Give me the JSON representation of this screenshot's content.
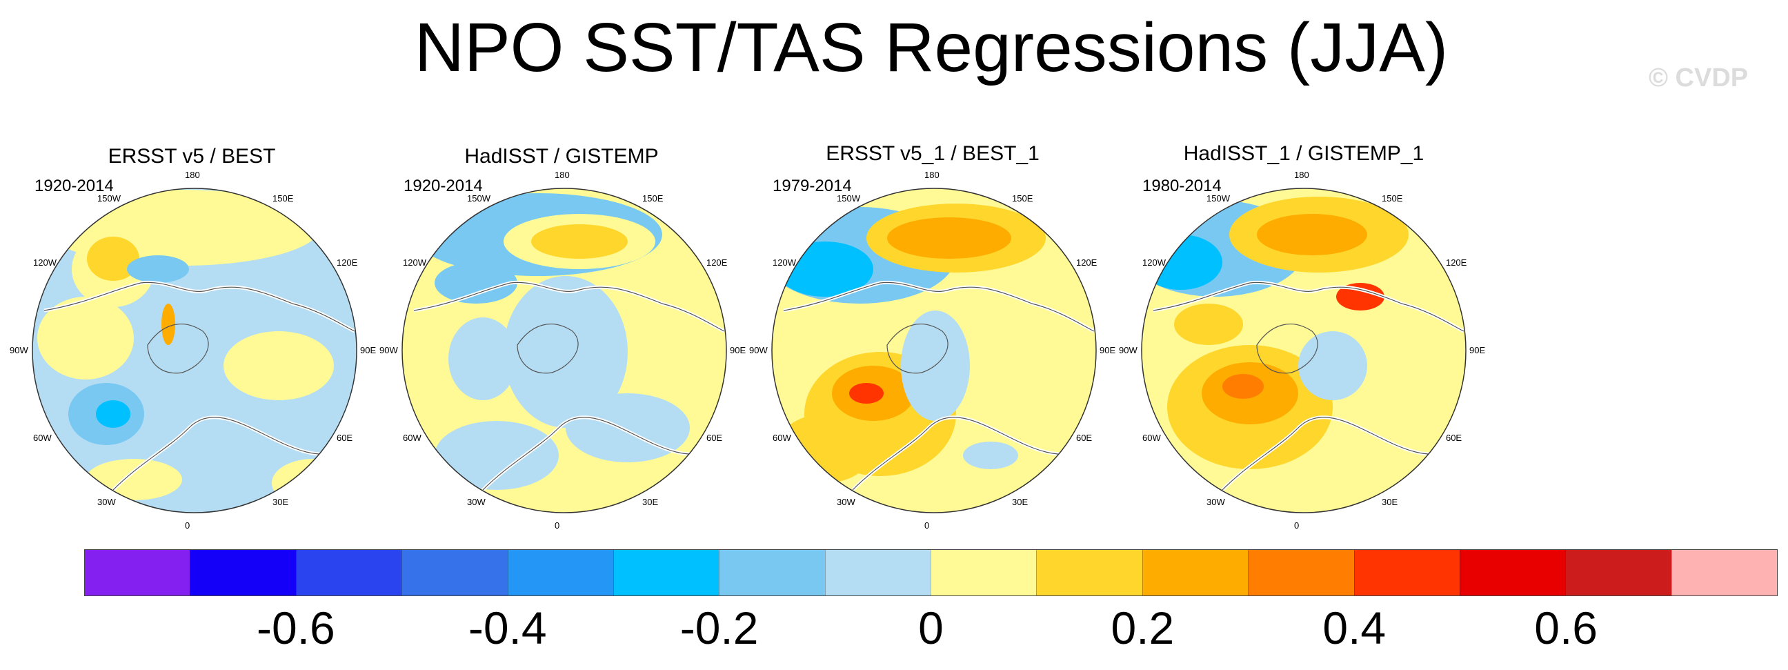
{
  "title": "NPO SST/TAS Regressions (JJA)",
  "watermark": "© CVDP",
  "panels": [
    {
      "title": "ERSST v5 / BEST",
      "period": "1920-2014"
    },
    {
      "title": "HadISST / GISTEMP",
      "period": "1920-2014"
    },
    {
      "title": "ERSST v5_1 / BEST_1",
      "period": "1979-2014"
    },
    {
      "title": "HadISST_1 / GISTEMP_1",
      "period": "1980-2014"
    }
  ],
  "lon_labels": [
    "180",
    "150E",
    "120E",
    "90E",
    "60E",
    "30E",
    "0",
    "30W",
    "60W",
    "90W",
    "120W",
    "150W"
  ],
  "colorbar": {
    "colors": [
      "#8420f0",
      "#1400f8",
      "#2a44ef",
      "#3672ea",
      "#2496f5",
      "#00c0ff",
      "#78c8f2",
      "#b4ddf4",
      "#fffa96",
      "#ffd62c",
      "#ffac00",
      "#ff7d00",
      "#ff3400",
      "#e80000",
      "#cc1c1c",
      "#ffb2b2"
    ],
    "tick_labels": [
      "-0.6",
      "-0.4",
      "-0.2",
      "0",
      "0.2",
      "0.4",
      "0.6"
    ],
    "tick_values": [
      -0.6,
      -0.4,
      -0.2,
      0,
      0.2,
      0.4,
      0.6
    ],
    "range": [
      -0.8,
      0.8
    ]
  },
  "chart_data": {
    "type": "heatmap",
    "title": "NPO SST/TAS Regressions (JJA)",
    "projection": "north polar stereographic",
    "panels": [
      "ERSST v5 / BEST",
      "HadISST / GISTEMP",
      "ERSST v5_1 / BEST_1",
      "HadISST_1 / GISTEMP_1"
    ],
    "color_levels": [
      -0.7,
      -0.6,
      -0.5,
      -0.4,
      -0.3,
      -0.2,
      -0.1,
      0,
      0.1,
      0.2,
      0.3,
      0.4,
      0.5,
      0.6,
      0.7
    ],
    "colorbar_range": [
      -0.8,
      0.8
    ]
  }
}
